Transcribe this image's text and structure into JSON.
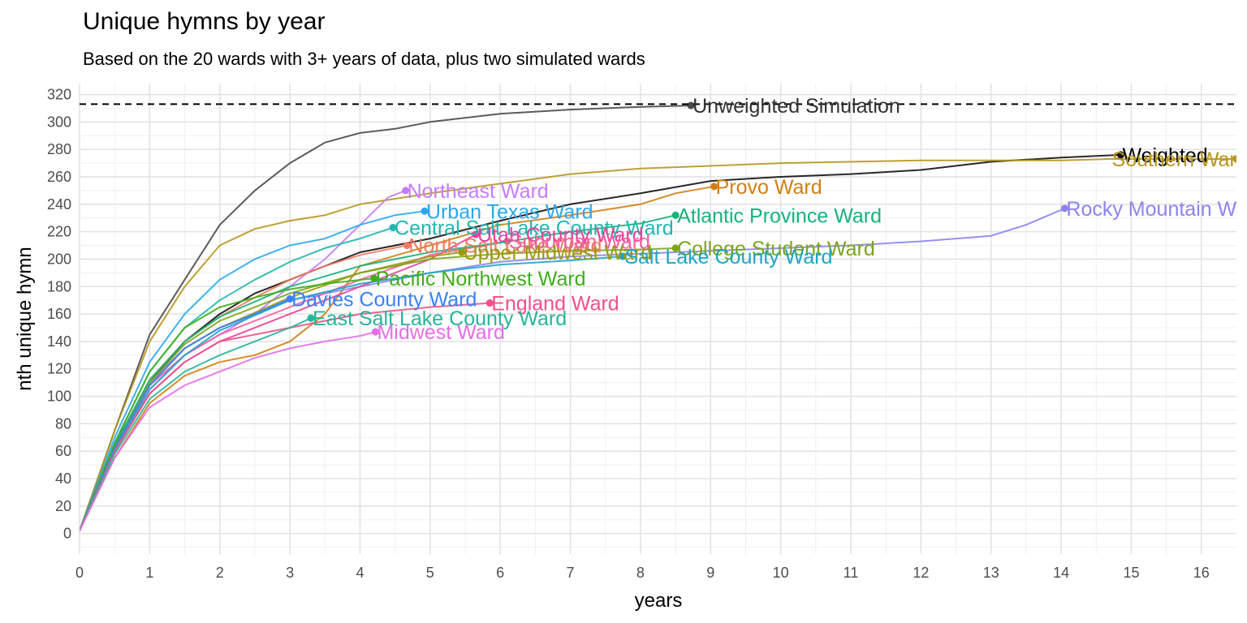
{
  "chart_data": {
    "type": "line",
    "title": "Unique hymns by year",
    "subtitle": "Based on the 20 wards with 3+ years of data, plus two simulated wards",
    "xlabel": "years",
    "ylabel": "nth unique hymn",
    "xlim": [
      0,
      16.5
    ],
    "ylim": [
      -15,
      328
    ],
    "x_ticks": [
      "0",
      "1",
      "2",
      "3",
      "4",
      "5",
      "6",
      "7",
      "8",
      "9",
      "10",
      "11",
      "12",
      "13",
      "14",
      "15",
      "16"
    ],
    "y_ticks": [
      "0",
      "20",
      "40",
      "60",
      "80",
      "100",
      "120",
      "140",
      "160",
      "180",
      "200",
      "220",
      "240",
      "260",
      "280",
      "300",
      "320"
    ],
    "grid": true,
    "legend": "none",
    "reference_line": {
      "y": 313,
      "style": "dashed"
    },
    "series": [
      {
        "name": "Unweighted Simulation",
        "color": "#4a4a4a",
        "points": [
          [
            0,
            2
          ],
          [
            0.5,
            75
          ],
          [
            1,
            145
          ],
          [
            1.5,
            185
          ],
          [
            2,
            225
          ],
          [
            2.5,
            250
          ],
          [
            3,
            270
          ],
          [
            3.5,
            285
          ],
          [
            4,
            292
          ],
          [
            4.5,
            295
          ],
          [
            5,
            300
          ],
          [
            5.5,
            303
          ],
          [
            6,
            306
          ],
          [
            7,
            309
          ],
          [
            8,
            311
          ],
          [
            8.72,
            312
          ]
        ]
      },
      {
        "name": "Weighted",
        "color": "#111111",
        "points": [
          [
            0,
            2
          ],
          [
            0.5,
            65
          ],
          [
            1,
            110
          ],
          [
            1.5,
            140
          ],
          [
            2,
            160
          ],
          [
            2.5,
            175
          ],
          [
            3,
            185
          ],
          [
            3.5,
            195
          ],
          [
            4,
            205
          ],
          [
            5,
            215
          ],
          [
            6,
            228
          ],
          [
            7,
            240
          ],
          [
            8,
            248
          ],
          [
            9,
            257
          ],
          [
            10,
            260
          ],
          [
            11,
            262
          ],
          [
            12,
            265
          ],
          [
            13,
            271
          ],
          [
            14,
            274
          ],
          [
            14.85,
            276
          ]
        ]
      },
      {
        "name": "Southern Ward",
        "color": "#b8961e",
        "points": [
          [
            0,
            2
          ],
          [
            0.5,
            75
          ],
          [
            1,
            140
          ],
          [
            1.5,
            180
          ],
          [
            2,
            210
          ],
          [
            2.5,
            222
          ],
          [
            3,
            228
          ],
          [
            3.5,
            232
          ],
          [
            4,
            240
          ],
          [
            5,
            248
          ],
          [
            6,
            255
          ],
          [
            7,
            262
          ],
          [
            8,
            266
          ],
          [
            9,
            268
          ],
          [
            10,
            270
          ],
          [
            12,
            272
          ],
          [
            14,
            272
          ],
          [
            14.7,
            273
          ],
          [
            16.5,
            273
          ]
        ]
      },
      {
        "name": "Provo Ward",
        "color": "#d07f12",
        "points": [
          [
            0,
            2
          ],
          [
            0.5,
            55
          ],
          [
            1,
            95
          ],
          [
            1.5,
            115
          ],
          [
            2,
            125
          ],
          [
            2.5,
            130
          ],
          [
            3,
            140
          ],
          [
            3.5,
            160
          ],
          [
            4,
            195
          ],
          [
            5,
            210
          ],
          [
            6,
            225
          ],
          [
            7,
            232
          ],
          [
            8,
            240
          ],
          [
            8.5,
            248
          ],
          [
            9.05,
            253
          ]
        ]
      },
      {
        "name": "Rocky Mountain Ward",
        "color": "#8b84f0",
        "points": [
          [
            0,
            2
          ],
          [
            0.5,
            65
          ],
          [
            1,
            110
          ],
          [
            1.5,
            135
          ],
          [
            2,
            150
          ],
          [
            3,
            170
          ],
          [
            4,
            180
          ],
          [
            5,
            190
          ],
          [
            6,
            198
          ],
          [
            7,
            202
          ],
          [
            8,
            204
          ],
          [
            9,
            206
          ],
          [
            10,
            208
          ],
          [
            11,
            210
          ],
          [
            12,
            213
          ],
          [
            13,
            217
          ],
          [
            13.5,
            225
          ],
          [
            14.05,
            237
          ]
        ]
      },
      {
        "name": "Northeast Ward",
        "color": "#c77cff",
        "points": [
          [
            0,
            2
          ],
          [
            0.5,
            62
          ],
          [
            1,
            105
          ],
          [
            1.5,
            130
          ],
          [
            2,
            145
          ],
          [
            2.5,
            160
          ],
          [
            3,
            180
          ],
          [
            3.5,
            200
          ],
          [
            4,
            225
          ],
          [
            4.4,
            245
          ],
          [
            4.65,
            250
          ]
        ]
      },
      {
        "name": "Urban Texas Ward",
        "color": "#2aa8f2",
        "points": [
          [
            0,
            2
          ],
          [
            0.5,
            70
          ],
          [
            1,
            125
          ],
          [
            1.5,
            160
          ],
          [
            2,
            185
          ],
          [
            2.5,
            200
          ],
          [
            3,
            210
          ],
          [
            3.5,
            215
          ],
          [
            4,
            225
          ],
          [
            4.5,
            232
          ],
          [
            4.92,
            235
          ]
        ]
      },
      {
        "name": "Central Salt Lake County Ward",
        "color": "#22b6b0",
        "points": [
          [
            0,
            2
          ],
          [
            0.5,
            66
          ],
          [
            1,
            118
          ],
          [
            1.5,
            150
          ],
          [
            2,
            170
          ],
          [
            2.5,
            185
          ],
          [
            3,
            198
          ],
          [
            3.5,
            208
          ],
          [
            4,
            215
          ],
          [
            4.47,
            223
          ]
        ]
      },
      {
        "name": "North Salt Lake Ward",
        "color": "#f07a60",
        "points": [
          [
            0,
            2
          ],
          [
            0.5,
            64
          ],
          [
            1,
            112
          ],
          [
            1.5,
            140
          ],
          [
            2,
            158
          ],
          [
            2.5,
            172
          ],
          [
            3,
            185
          ],
          [
            3.5,
            195
          ],
          [
            4,
            203
          ],
          [
            4.67,
            210
          ]
        ]
      },
      {
        "name": "Utah County Ward",
        "color": "#e8409a",
        "points": [
          [
            0,
            2
          ],
          [
            0.5,
            60
          ],
          [
            1,
            102
          ],
          [
            1.5,
            125
          ],
          [
            2,
            140
          ],
          [
            3,
            160
          ],
          [
            4,
            180
          ],
          [
            5,
            200
          ],
          [
            5.65,
            218
          ]
        ]
      },
      {
        "name": "Suburban Ward",
        "color": "#f45fa0",
        "points": [
          [
            0,
            2
          ],
          [
            0.5,
            62
          ],
          [
            1,
            108
          ],
          [
            1.5,
            130
          ],
          [
            2,
            145
          ],
          [
            3,
            165
          ],
          [
            4,
            185
          ],
          [
            5,
            203
          ],
          [
            6.1,
            213
          ]
        ]
      },
      {
        "name": "Upper Midwest Ward",
        "color": "#9a9a0a",
        "points": [
          [
            0,
            2
          ],
          [
            0.5,
            63
          ],
          [
            1,
            108
          ],
          [
            1.5,
            135
          ],
          [
            2,
            150
          ],
          [
            3,
            172
          ],
          [
            4,
            190
          ],
          [
            5,
            202
          ],
          [
            5.45,
            205
          ]
        ]
      },
      {
        "name": "College Student Ward",
        "color": "#7aa51a",
        "points": [
          [
            0,
            2
          ],
          [
            0.5,
            62
          ],
          [
            1,
            110
          ],
          [
            1.5,
            138
          ],
          [
            2,
            155
          ],
          [
            3,
            175
          ],
          [
            4,
            190
          ],
          [
            5,
            200
          ],
          [
            6,
            204
          ],
          [
            7,
            206
          ],
          [
            8,
            207
          ],
          [
            8.5,
            208
          ]
        ]
      },
      {
        "name": "Salt Lake County Ward",
        "color": "#1ca6c8",
        "points": [
          [
            0,
            2
          ],
          [
            0.5,
            60
          ],
          [
            1,
            105
          ],
          [
            1.5,
            130
          ],
          [
            2,
            148
          ],
          [
            3,
            170
          ],
          [
            4,
            182
          ],
          [
            5,
            190
          ],
          [
            6,
            196
          ],
          [
            7,
            199
          ],
          [
            7.75,
            202
          ]
        ]
      },
      {
        "name": "Atlantic Province Ward",
        "color": "#18b27a",
        "points": [
          [
            0,
            2
          ],
          [
            0.5,
            64
          ],
          [
            1,
            112
          ],
          [
            1.5,
            140
          ],
          [
            2,
            158
          ],
          [
            3,
            180
          ],
          [
            4,
            195
          ],
          [
            5,
            205
          ],
          [
            6,
            212
          ],
          [
            7,
            220
          ],
          [
            8,
            226
          ],
          [
            8.5,
            232
          ]
        ]
      },
      {
        "name": "Pacific Northwest Ward",
        "color": "#3fae1a",
        "points": [
          [
            0,
            2
          ],
          [
            0.5,
            66
          ],
          [
            1,
            118
          ],
          [
            1.5,
            150
          ],
          [
            2,
            165
          ],
          [
            2.5,
            172
          ],
          [
            3,
            178
          ],
          [
            3.5,
            182
          ],
          [
            4.2,
            186
          ]
        ]
      },
      {
        "name": "Davies County Ward",
        "color": "#3b82f6",
        "points": [
          [
            0,
            2
          ],
          [
            0.5,
            62
          ],
          [
            1,
            108
          ],
          [
            1.5,
            135
          ],
          [
            2,
            150
          ],
          [
            2.5,
            160
          ],
          [
            3,
            171
          ]
        ]
      },
      {
        "name": "England Ward",
        "color": "#f0508a",
        "points": [
          [
            0,
            2
          ],
          [
            0.5,
            60
          ],
          [
            1,
            102
          ],
          [
            1.5,
            125
          ],
          [
            2,
            140
          ],
          [
            3,
            150
          ],
          [
            4,
            160
          ],
          [
            5,
            165
          ],
          [
            5.85,
            168
          ]
        ]
      },
      {
        "name": "East Salt Lake County Ward",
        "color": "#26b59a",
        "points": [
          [
            0,
            2
          ],
          [
            0.5,
            58
          ],
          [
            1,
            98
          ],
          [
            1.5,
            118
          ],
          [
            2,
            130
          ],
          [
            2.5,
            140
          ],
          [
            3,
            150
          ],
          [
            3.3,
            157
          ]
        ]
      },
      {
        "name": "Midwest Ward",
        "color": "#e46fe6",
        "points": [
          [
            0,
            2
          ],
          [
            0.5,
            55
          ],
          [
            1,
            92
          ],
          [
            1.5,
            108
          ],
          [
            2,
            118
          ],
          [
            2.5,
            128
          ],
          [
            3,
            135
          ],
          [
            3.5,
            140
          ],
          [
            4,
            144
          ],
          [
            4.22,
            147
          ]
        ]
      }
    ],
    "labels": [
      {
        "text": "Unweighted Simulation",
        "x": 8.72,
        "y": 312,
        "color": "#333333"
      },
      {
        "text": "Weighted",
        "x": 14.85,
        "y": 276,
        "color": "#000000"
      },
      {
        "text": "Southern Ward",
        "x": 14.7,
        "y": 273,
        "color": "#b8961e"
      },
      {
        "text": "Provo Ward",
        "x": 9.05,
        "y": 253,
        "color": "#d07f12"
      },
      {
        "text": "Rocky Mountain Ward",
        "x": 14.05,
        "y": 237,
        "color": "#8b84f0"
      },
      {
        "text": "Northeast Ward",
        "x": 4.65,
        "y": 250,
        "color": "#c77cff"
      },
      {
        "text": "Urban Texas Ward",
        "x": 4.92,
        "y": 235,
        "color": "#2aa8f2"
      },
      {
        "text": "Central Salt Lake County Ward",
        "x": 4.47,
        "y": 223,
        "color": "#22b6b0"
      },
      {
        "text": "Atlantic Province Ward",
        "x": 8.5,
        "y": 232,
        "color": "#18b27a"
      },
      {
        "text": "North Salt Lake Ward",
        "x": 4.67,
        "y": 210,
        "color": "#f07a60"
      },
      {
        "text": "Utah County Ward",
        "x": 5.65,
        "y": 218,
        "color": "#e8409a"
      },
      {
        "text": "Suburban Ward",
        "x": 6.1,
        "y": 213,
        "color": "#f45fa0"
      },
      {
        "text": "College Student Ward",
        "x": 8.5,
        "y": 208,
        "color": "#7aa51a"
      },
      {
        "text": "Upper Midwest Ward",
        "x": 5.45,
        "y": 205,
        "color": "#9a9a0a"
      },
      {
        "text": "Salt Lake County Ward",
        "x": 7.75,
        "y": 202,
        "color": "#1ca6c8"
      },
      {
        "text": "Pacific Northwest Ward",
        "x": 4.2,
        "y": 186,
        "color": "#3fae1a"
      },
      {
        "text": "Davies County Ward",
        "x": 3.0,
        "y": 171,
        "color": "#3b82f6"
      },
      {
        "text": "England Ward",
        "x": 5.85,
        "y": 168,
        "color": "#f0508a"
      },
      {
        "text": "East Salt Lake County Ward",
        "x": 3.3,
        "y": 157,
        "color": "#26b59a"
      },
      {
        "text": "Midwest Ward",
        "x": 4.22,
        "y": 147,
        "color": "#e46fe6"
      }
    ]
  }
}
